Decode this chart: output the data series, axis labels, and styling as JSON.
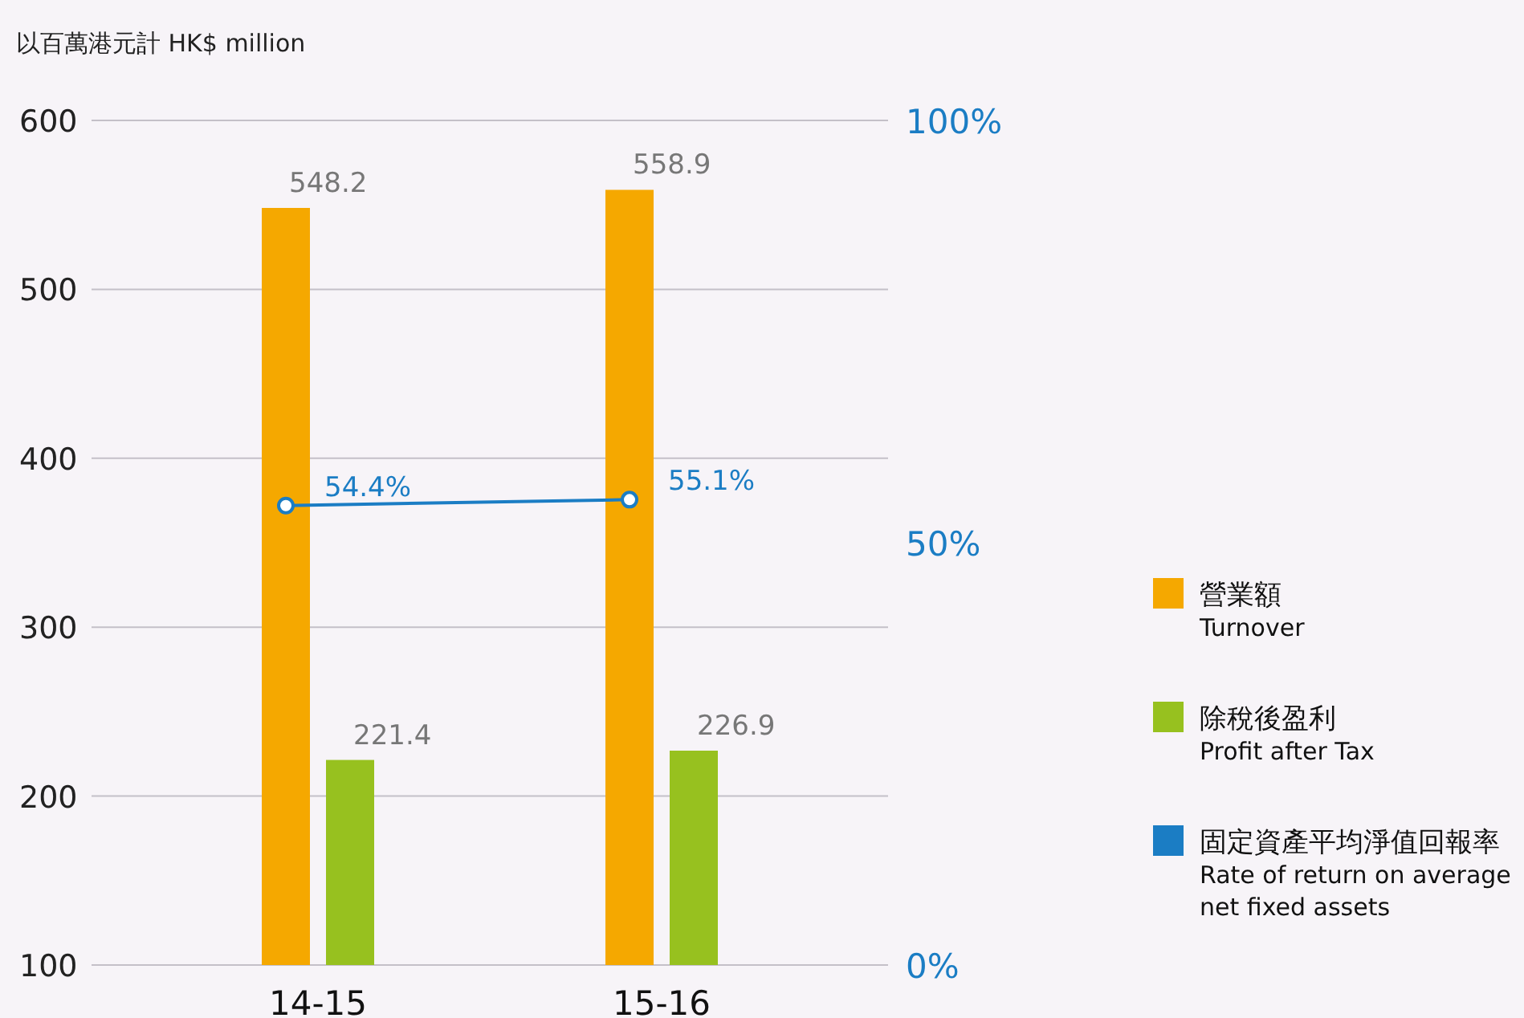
{
  "chart_data": {
    "type": "bar",
    "ylabel": "以百萬港元計 HK$ million",
    "categories": [
      "14-15",
      "15-16"
    ],
    "series": [
      {
        "name": "營業額\nTurnover",
        "color": "#f5a800",
        "values": [
          548.2,
          558.9
        ]
      },
      {
        "name": "除稅後盈利\nProfit after Tax",
        "color": "#97c11f",
        "values": [
          221.4,
          226.9
        ]
      },
      {
        "name": "固定資產平均淨值回報率\nRate of return on average\nnet fixed assets",
        "color": "#1b7dc4",
        "type": "line",
        "axis": "y2",
        "values": [
          54.4,
          55.1
        ],
        "value_labels": [
          "54.4%",
          "55.1%"
        ]
      }
    ],
    "ylim": [
      100,
      600
    ],
    "yticks": [
      100,
      200,
      300,
      400,
      500,
      600
    ],
    "y2lim": [
      0,
      100
    ],
    "y2ticks": [
      {
        "value": 0,
        "label": "0%"
      },
      {
        "value": 50,
        "label": "50%"
      },
      {
        "value": 100,
        "label": "100%"
      }
    ],
    "grid": "y",
    "legend": "right",
    "data_labels": true,
    "marker": "circle"
  }
}
